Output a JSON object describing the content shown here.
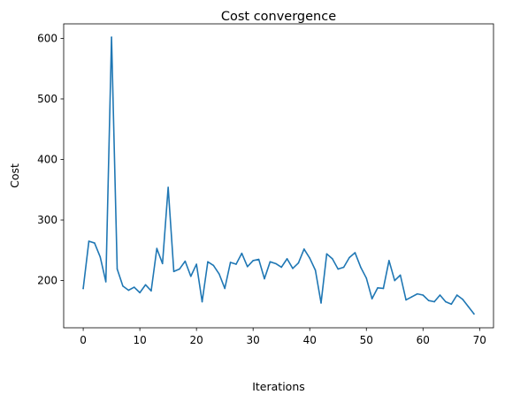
{
  "chart_data": {
    "type": "line",
    "title": "Cost convergence",
    "xlabel": "Iterations",
    "ylabel": "Cost",
    "xlim": [
      -3.45,
      72.45
    ],
    "ylim": [
      122,
      624
    ],
    "xticks": [
      0,
      10,
      20,
      30,
      40,
      50,
      60,
      70
    ],
    "yticks": [
      200,
      300,
      400,
      500,
      600
    ],
    "grid": false,
    "line_color": "#1f77b4",
    "series": [
      {
        "x": [
          0,
          1,
          2,
          3,
          4,
          5,
          6,
          7,
          8,
          9,
          10,
          11,
          12,
          13,
          14,
          15,
          16,
          17,
          18,
          19,
          20,
          21,
          22,
          23,
          24,
          25,
          26,
          27,
          28,
          29,
          30,
          31,
          32,
          33,
          34,
          35,
          36,
          37,
          38,
          39,
          40,
          41,
          42,
          43,
          44,
          45,
          46,
          47,
          48,
          49,
          50,
          51,
          52,
          53,
          54,
          55,
          56,
          57,
          58,
          59,
          60,
          61,
          62,
          63,
          64,
          65,
          66,
          67,
          68,
          69
        ],
        "values": [
          187,
          265,
          262,
          239,
          198,
          602,
          219,
          191,
          184,
          189,
          180,
          193,
          183,
          253,
          228,
          354,
          215,
          219,
          232,
          207,
          227,
          165,
          231,
          225,
          211,
          187,
          230,
          227,
          245,
          223,
          233,
          235,
          203,
          231,
          228,
          222,
          236,
          220,
          229,
          252,
          237,
          217,
          163,
          244,
          236,
          219,
          222,
          238,
          246,
          222,
          204,
          170,
          188,
          187,
          233,
          200,
          209,
          168,
          173,
          178,
          176,
          167,
          165,
          176,
          165,
          161,
          176,
          169,
          157,
          145
        ]
      }
    ]
  }
}
